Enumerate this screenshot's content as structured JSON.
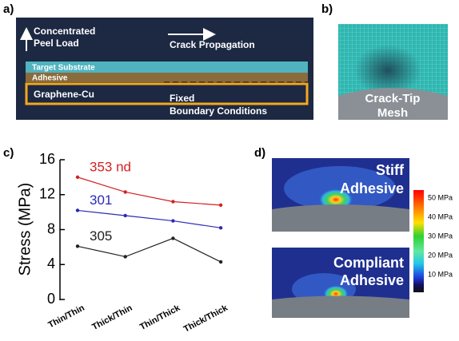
{
  "panel_labels": [
    "a)",
    "b)",
    "c)",
    "d)"
  ],
  "panel_a": {
    "load_label": [
      "Concentrated",
      "Peel Load"
    ],
    "crack_label": "Crack Propagation",
    "substrate": "Target Substrate",
    "adhesive": "Adhesive",
    "base": "Graphene-Cu",
    "boundary_label": [
      "Fixed",
      "Boundary Conditions"
    ]
  },
  "panel_b": {
    "label": [
      "Crack-Tip",
      "Mesh"
    ]
  },
  "chart_data": {
    "type": "line",
    "y_label": "Stress (MPa)",
    "categories": [
      "Thin/Thin",
      "Thick/Thin",
      "Thin/Thick",
      "Thick/Thick"
    ],
    "series": [
      {
        "name": "353 nd",
        "color": "#d42020",
        "values": [
          14.0,
          12.3,
          11.2,
          10.8
        ]
      },
      {
        "name": "301",
        "color": "#2a2ab8",
        "values": [
          10.2,
          9.6,
          9.0,
          8.2
        ]
      },
      {
        "name": "305",
        "color": "#222222",
        "values": [
          6.1,
          4.9,
          7.0,
          4.3
        ]
      }
    ],
    "ylim": [
      0,
      16
    ],
    "yticks": [
      0,
      4,
      8,
      12,
      16
    ]
  },
  "panel_d": {
    "top_label": [
      "Stiff",
      "Adhesive"
    ],
    "bottom_label": [
      "Compliant",
      "Adhesive"
    ],
    "colorbar_labels": [
      "50 MPa",
      "40 MPa",
      "30 MPa",
      "20 MPa",
      "10 MPa"
    ]
  }
}
